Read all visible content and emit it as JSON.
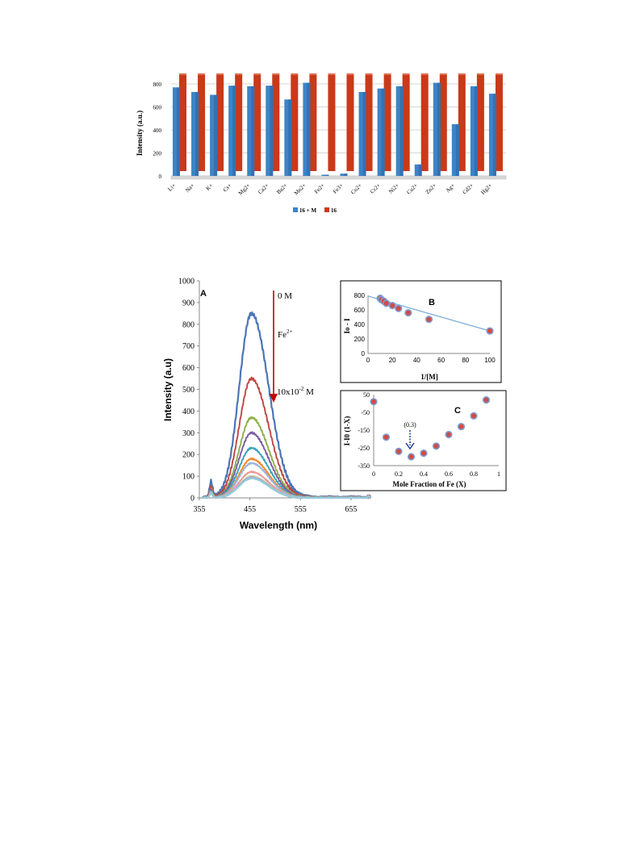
{
  "chart_data": [
    {
      "id": "bar",
      "type": "bar",
      "categories": [
        "Li+",
        "Na+",
        "K+",
        "Cs+",
        "Mg2+",
        "Ca2+",
        "Ba2+",
        "Mn2+",
        "Fe2+",
        "Fe3+",
        "Co2+",
        "Cr2+",
        "Ni2+",
        "Cu2+",
        "Zn2+",
        "Ag+",
        "Cd2+",
        "Hg2+"
      ],
      "ylabel": "Intensity (a.u.)",
      "ylim": [
        0,
        800
      ],
      "yticks": [
        0,
        200,
        400,
        600,
        800
      ],
      "grid": true,
      "legend_position": "bottom",
      "series": [
        {
          "name": "16 + M",
          "color": "#3d84c6",
          "values": [
            770,
            730,
            705,
            785,
            780,
            785,
            665,
            810,
            10,
            20,
            730,
            760,
            780,
            100,
            810,
            450,
            780,
            715
          ]
        },
        {
          "name": "16",
          "color": "#c9391a",
          "values": [
            840,
            840,
            840,
            840,
            840,
            840,
            840,
            840,
            840,
            840,
            840,
            840,
            840,
            840,
            840,
            840,
            840,
            840
          ]
        }
      ]
    },
    {
      "id": "A",
      "type": "line",
      "panel_label": "A",
      "xlabel": "Wavelength (nm)",
      "ylabel": "Intensity (a.u)",
      "xlim": [
        355,
        695
      ],
      "ylim": [
        0,
        1000
      ],
      "xticks": [
        355,
        455,
        555,
        655
      ],
      "yticks": [
        0,
        100,
        200,
        300,
        400,
        500,
        600,
        700,
        800,
        900,
        1000
      ],
      "annotations": {
        "top": "0 M",
        "ion": "Fe",
        "ion_charge": "2+",
        "bottom_base": "10x10",
        "bottom_exp": "-2",
        "bottom_unit": " M"
      },
      "series": [
        {
          "color": "#4a76b5",
          "peak": 850
        },
        {
          "color": "#bf4543",
          "peak": 550
        },
        {
          "color": "#8fb04a",
          "peak": 370
        },
        {
          "color": "#7c5ba3",
          "peak": 300
        },
        {
          "color": "#3aa3b8",
          "peak": 230
        },
        {
          "color": "#f08a2c",
          "peak": 180
        },
        {
          "color": "#9cb5dc",
          "peak": 160
        },
        {
          "color": "#e89a98",
          "peak": 120
        },
        {
          "color": "#c3d69b",
          "peak": 100
        },
        {
          "color": "#b2a2c7",
          "peak": 95
        },
        {
          "color": "#92cddc",
          "peak": 90
        }
      ]
    },
    {
      "id": "B",
      "type": "scatter",
      "panel_label": "B",
      "xlabel": "1/[M]",
      "ylabel": "Io - I",
      "xlim": [
        0,
        100
      ],
      "ylim": [
        0,
        800
      ],
      "xticks": [
        0,
        20,
        40,
        60,
        80,
        100
      ],
      "yticks": [
        0,
        200,
        400,
        600,
        800
      ],
      "x": [
        10,
        11,
        13,
        15,
        20,
        25,
        33,
        50,
        100
      ],
      "y": [
        760,
        740,
        720,
        690,
        660,
        620,
        560,
        470,
        310
      ],
      "trendline": [
        [
          0,
          790
        ],
        [
          100,
          310
        ]
      ]
    },
    {
      "id": "C",
      "type": "scatter",
      "panel_label": "C",
      "xlabel": "Mole Fraction of Fe (X)",
      "ylabel": "I-I0 (1-X)",
      "xlim": [
        0,
        1
      ],
      "ylim": [
        -350,
        50
      ],
      "xticks": [
        "0",
        "0.2",
        "0.4",
        "0.6",
        "0.8",
        "1"
      ],
      "yticks": [
        "50",
        "-50",
        "-150",
        "-250",
        "-350"
      ],
      "annotation": "(0.3)",
      "x": [
        0,
        0.1,
        0.2,
        0.3,
        0.4,
        0.5,
        0.6,
        0.7,
        0.8,
        0.9
      ],
      "y": [
        10,
        -190,
        -270,
        -300,
        -280,
        -240,
        -175,
        -130,
        -70,
        20
      ]
    }
  ]
}
